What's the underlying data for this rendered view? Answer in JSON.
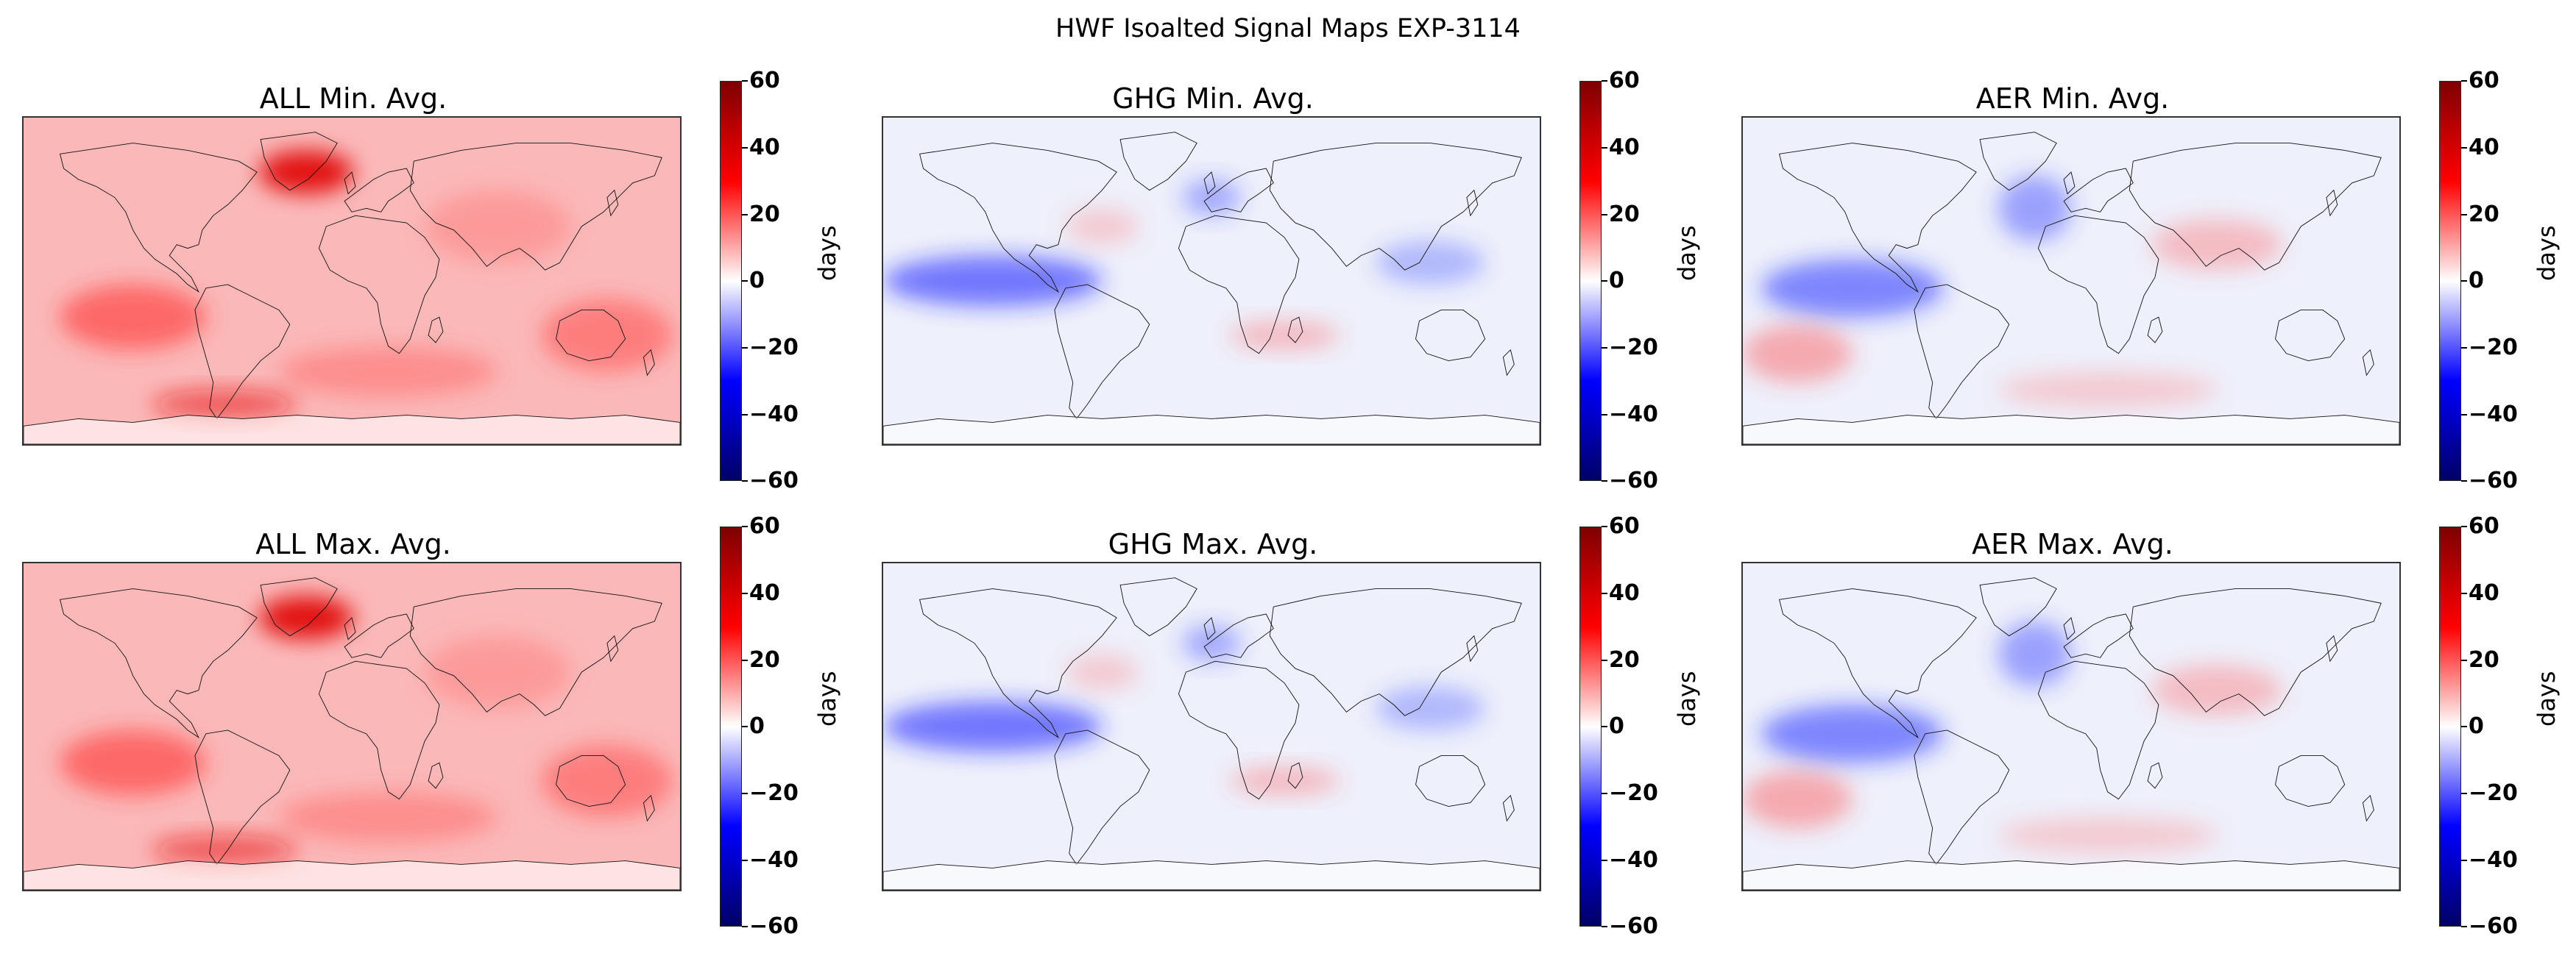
{
  "figure": {
    "title": "HWF Isoalted Signal Maps EXP-3114"
  },
  "colorbar": {
    "label": "days",
    "ticks": [
      "60",
      "40",
      "20",
      "0",
      "−20",
      "−40",
      "−60"
    ],
    "range": [
      -60,
      60
    ],
    "colormap": "seismic",
    "colors": [
      "#000066",
      "#0000ff",
      "#ffffff",
      "#ff0000",
      "#7f0000"
    ]
  },
  "panels": [
    {
      "id": "all-min",
      "title": "ALL Min. Avg.",
      "forcing": "ALL",
      "stat": "Min",
      "mean_anomaly_days": 15
    },
    {
      "id": "ghg-min",
      "title": "GHG Min. Avg.",
      "forcing": "GHG",
      "stat": "Min",
      "mean_anomaly_days": -3
    },
    {
      "id": "aer-min",
      "title": "AER Min. Avg.",
      "forcing": "AER",
      "stat": "Min",
      "mean_anomaly_days": -2
    },
    {
      "id": "all-max",
      "title": "ALL Max. Avg.",
      "forcing": "ALL",
      "stat": "Max",
      "mean_anomaly_days": 17
    },
    {
      "id": "ghg-max",
      "title": "GHG Max. Avg.",
      "forcing": "GHG",
      "stat": "Max",
      "mean_anomaly_days": -3
    },
    {
      "id": "aer-max",
      "title": "AER Max. Avg.",
      "forcing": "AER",
      "stat": "Max",
      "mean_anomaly_days": -2
    }
  ]
}
